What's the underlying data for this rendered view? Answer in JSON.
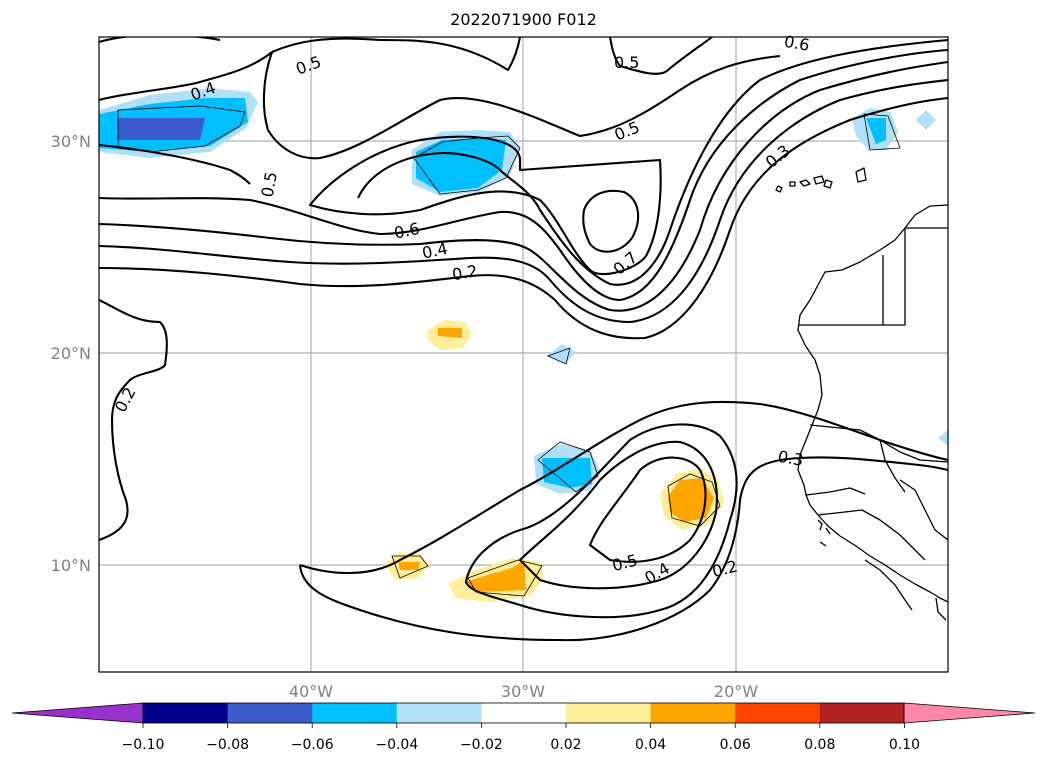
{
  "title": "2022071900 F012",
  "map": {
    "lat_labels": [
      "30°N",
      "20°N",
      "10°N"
    ],
    "lon_labels": [
      "40°W",
      "30°W",
      "20°W"
    ],
    "contour_labels": [
      "0.4",
      "0.5",
      "0.5",
      "0.6",
      "0.3",
      "0.5",
      "0.5",
      "0.6",
      "0.4",
      "0.2",
      "0.7",
      "0.2",
      "0.3",
      "0.5",
      "0.4",
      "0.2"
    ]
  },
  "colorbar": {
    "colors": [
      "#9932cc",
      "#00008b",
      "#3a5ccc",
      "#00bfff",
      "#b0e0f8",
      "#ffffff",
      "#ffee99",
      "#ffa500",
      "#ff4500",
      "#b22222",
      "#ff88aa"
    ],
    "tick_labels": [
      "−0.10",
      "−0.08",
      "−0.06",
      "−0.04",
      "−0.02",
      "0.02",
      "0.04",
      "0.06",
      "0.08",
      "0.10"
    ]
  }
}
